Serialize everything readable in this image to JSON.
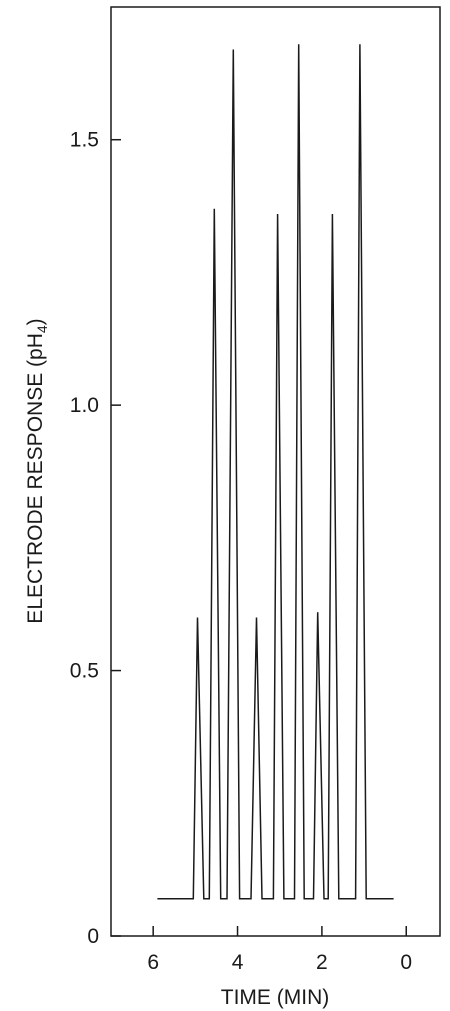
{
  "chart_data": {
    "type": "line",
    "title": "",
    "xlabel": "TIME (MIN)",
    "ylabel_main": "ELECTRODE RESPONSE (pH",
    "ylabel_sub": "4",
    "ylabel_close": ")",
    "xlim": [
      7.0,
      -0.8
    ],
    "ylim": [
      0,
      1.75
    ],
    "xaxis_reversed": true,
    "grid": false,
    "legend": "none",
    "x_ticks": [
      6,
      4,
      2,
      0
    ],
    "x_tick_labels": [
      "6",
      "4",
      "2",
      "0"
    ],
    "y_ticks": [
      0,
      0.5,
      1.0,
      1.5
    ],
    "y_tick_labels": [
      "0",
      "0.5",
      "1.0",
      "1.5"
    ],
    "line_color": "#1a1a1a",
    "series": [
      {
        "x": [
          5.9,
          5.05,
          4.95,
          4.8,
          4.67,
          4.55,
          4.4,
          4.25,
          4.1,
          3.95,
          3.8,
          3.68,
          3.55,
          3.42,
          3.3,
          3.15,
          3.05,
          2.9,
          2.75,
          2.65,
          2.55,
          2.42,
          2.3,
          2.2,
          2.1,
          1.95,
          1.85,
          1.75,
          1.6,
          1.45,
          1.3,
          1.2,
          1.1,
          0.95,
          0.3
        ],
        "y": [
          0.07,
          0.07,
          0.6,
          0.07,
          0.07,
          1.37,
          0.07,
          0.07,
          1.67,
          0.07,
          0.07,
          0.07,
          0.6,
          0.07,
          0.07,
          0.07,
          1.36,
          0.07,
          0.07,
          0.07,
          1.68,
          0.07,
          0.07,
          0.07,
          0.61,
          0.07,
          0.07,
          1.36,
          0.07,
          0.07,
          0.07,
          0.07,
          1.68,
          0.07,
          0.07
        ]
      }
    ]
  }
}
